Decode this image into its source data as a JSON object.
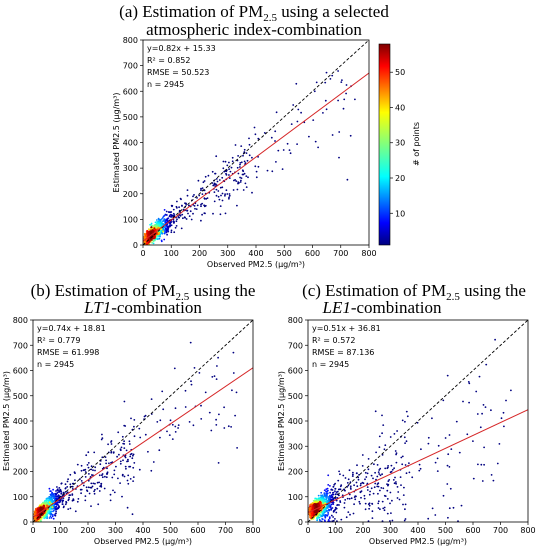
{
  "chart_data": [
    {
      "type": "scatter",
      "panel": "a",
      "title": [
        "(a) Estimation of PM",
        "2.5",
        " using a selected",
        "atmospheric index-combination"
      ],
      "xlabel": "Observed PM2.5 (μg/m³)",
      "ylabel": "Estimated PM2.5 (μg/m³)",
      "xlim": [
        0,
        800
      ],
      "ylim": [
        0,
        800
      ],
      "xticks": [
        "0",
        "100",
        "200",
        "300",
        "400",
        "500",
        "600",
        "700",
        "800"
      ],
      "yticks": [
        "0",
        "100",
        "200",
        "300",
        "400",
        "500",
        "600",
        "700",
        "800"
      ],
      "stats": [
        "y=0.82x + 15.33",
        "R² = 0.852",
        "RMSE = 50.523",
        "n = 2945"
      ],
      "fit": {
        "slope": 0.82,
        "intercept": 15.33,
        "color": "#d62728"
      },
      "identity_line": true,
      "n": 2945,
      "colorbar": {
        "label": "# of points",
        "range": [
          1,
          58
        ],
        "ticks": [
          "10",
          "20",
          "30",
          "40",
          "50"
        ],
        "colormap": "jet"
      }
    },
    {
      "type": "scatter",
      "panel": "b",
      "title": [
        "(b) Estimation of PM",
        "2.5",
        " using the",
        "LT1",
        "-combination"
      ],
      "xlabel": "Observed PM2.5 (μg/m³)",
      "ylabel": "Estimated PM2.5 (μg/m³)",
      "xlim": [
        0,
        800
      ],
      "ylim": [
        0,
        800
      ],
      "xticks": [
        "0",
        "100",
        "200",
        "300",
        "400",
        "500",
        "600",
        "700",
        "800"
      ],
      "yticks": [
        "0",
        "100",
        "200",
        "300",
        "400",
        "500",
        "600",
        "700",
        "800"
      ],
      "stats": [
        "y=0.74x + 18.81",
        "R² = 0.779",
        "RMSE = 61.998",
        "n = 2945"
      ],
      "fit": {
        "slope": 0.74,
        "intercept": 18.81,
        "color": "#d62728"
      },
      "identity_line": true,
      "n": 2945
    },
    {
      "type": "scatter",
      "panel": "c",
      "title": [
        "(c) Estimation of PM",
        "2.5",
        " using the",
        "LE1",
        "-combination"
      ],
      "xlabel": "Observed PM2.5 (μg/m³)",
      "ylabel": "Estimated PM2.5 (μg/m³)",
      "xlim": [
        0,
        800
      ],
      "ylim": [
        0,
        800
      ],
      "xticks": [
        "0",
        "100",
        "200",
        "300",
        "400",
        "500",
        "600",
        "700",
        "800"
      ],
      "yticks": [
        "0",
        "100",
        "200",
        "300",
        "400",
        "500",
        "600",
        "700",
        "800"
      ],
      "stats": [
        "y=0.51x + 36.81",
        "R² = 0.572",
        "RMSE = 87.136",
        "n = 2945"
      ],
      "fit": {
        "slope": 0.51,
        "intercept": 36.81,
        "color": "#d62728"
      },
      "identity_line": true,
      "n": 2945
    }
  ]
}
